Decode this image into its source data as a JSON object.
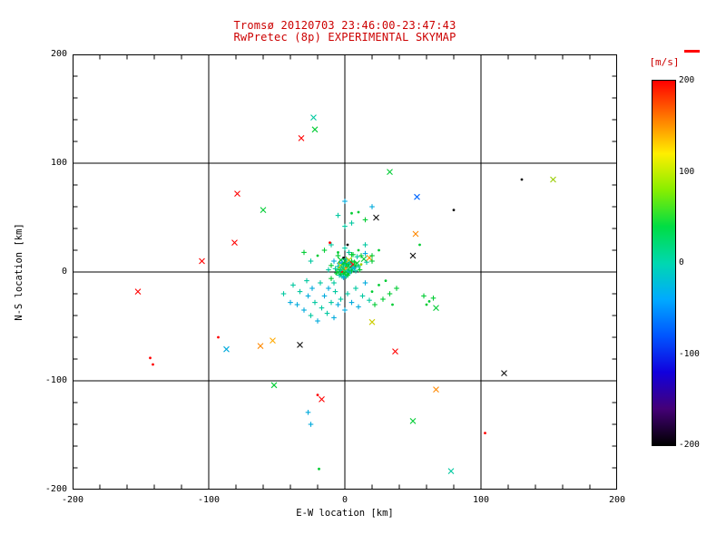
{
  "window": {
    "background": "#FFFFFF"
  },
  "chart_data": {
    "type": "scatter",
    "title": "Tromsø 20120703 23:46:00-23:47:43",
    "subtitle": "RwPretec (8p) EXPERIMENTAL SKYMAP",
    "xlabel": "E-W location [km]",
    "ylabel": "N-S location [km]",
    "xlim": [
      -200,
      200
    ],
    "ylim": [
      -200,
      200
    ],
    "xticks": [
      -200,
      -100,
      0,
      100,
      200
    ],
    "yticks": [
      -200,
      -100,
      0,
      100,
      200
    ],
    "minor_tick_step": 20,
    "grid_lines": [
      -100,
      0,
      100
    ],
    "grid_on": true,
    "title_color": "#CC0000",
    "axis_color": "#000000",
    "legend_position": "right-colorbar",
    "colorbar": {
      "label": "[m/s]",
      "label_color": "#CC0000",
      "ticks": [
        200,
        100,
        0,
        -100,
        -200
      ],
      "min": -200,
      "max": 200,
      "top_marker_color": "#FF0000",
      "gradient": [
        "#FF0000",
        "#FF7700",
        "#FFEE00",
        "#88EE00",
        "#00DD44",
        "#00D8B0",
        "#00AAFF",
        "#0055FF",
        "#1100DD",
        "#440077",
        "#000000"
      ]
    },
    "points": [
      [
        -7,
        3,
        "#00C8A0",
        "+"
      ],
      [
        -6,
        -1,
        "#00CC33",
        "+"
      ],
      [
        -5,
        5,
        "#00C8A0",
        "+"
      ],
      [
        -5,
        0,
        "#00CC33",
        "x"
      ],
      [
        -4,
        8,
        "#00AADC",
        "+"
      ],
      [
        -4,
        2,
        "#00CC33",
        "+"
      ],
      [
        -4,
        -3,
        "#00C8A0",
        "+"
      ],
      [
        -3,
        11,
        "#00CC33",
        "x"
      ],
      [
        -3,
        6,
        "#CCCC00",
        "x"
      ],
      [
        -3,
        1,
        "#00C8A0",
        "+"
      ],
      [
        -3,
        -2,
        "#00CC33",
        "+"
      ],
      [
        -2,
        9,
        "#00AADC",
        "+"
      ],
      [
        -2,
        4,
        "#00CC33",
        "+"
      ],
      [
        -2,
        0,
        "#FF0000",
        "."
      ],
      [
        -2,
        -4,
        "#00C8A0",
        "+"
      ],
      [
        -1,
        13,
        "#101010",
        "."
      ],
      [
        -1,
        7,
        "#00CC33",
        "+"
      ],
      [
        -1,
        3,
        "#00C8A0",
        "x"
      ],
      [
        -1,
        -1,
        "#00CC33",
        "+"
      ],
      [
        -1,
        -5,
        "#00AADC",
        "+"
      ],
      [
        0,
        10,
        "#00CC33",
        "x"
      ],
      [
        0,
        6,
        "#00C8A0",
        "+"
      ],
      [
        0,
        2,
        "#99CC00",
        "+"
      ],
      [
        0,
        -2,
        "#00CC33",
        "+"
      ],
      [
        1,
        12,
        "#00C8A0",
        "+"
      ],
      [
        1,
        8,
        "#00CC33",
        "+"
      ],
      [
        1,
        4,
        "#FF8800",
        "."
      ],
      [
        1,
        0,
        "#00CC33",
        "x"
      ],
      [
        1,
        -4,
        "#00C8A0",
        "+"
      ],
      [
        2,
        9,
        "#00AADC",
        "+"
      ],
      [
        2,
        5,
        "#00CC33",
        "+"
      ],
      [
        2,
        1,
        "#00C8A0",
        "+"
      ],
      [
        2,
        -3,
        "#00CC33",
        "+"
      ],
      [
        3,
        11,
        "#CCCC00",
        "x"
      ],
      [
        3,
        7,
        "#00CC33",
        "+"
      ],
      [
        3,
        2,
        "#00C8A0",
        "+"
      ],
      [
        3,
        -1,
        "#00CC33",
        "+"
      ],
      [
        4,
        8,
        "#00C8A0",
        "+"
      ],
      [
        4,
        4,
        "#00CC33",
        "x"
      ],
      [
        4,
        0,
        "#00AADC",
        "+"
      ],
      [
        5,
        10,
        "#00CC33",
        "+"
      ],
      [
        5,
        5,
        "#00C8A0",
        "+"
      ],
      [
        5,
        1,
        "#00CC33",
        "+"
      ],
      [
        6,
        7,
        "#FF0000",
        "x"
      ],
      [
        6,
        3,
        "#00C8A0",
        "+"
      ],
      [
        7,
        9,
        "#00CC33",
        "+"
      ],
      [
        7,
        4,
        "#00AADC",
        "+"
      ],
      [
        8,
        6,
        "#00CC33",
        "+"
      ],
      [
        8,
        1,
        "#00C8A0",
        "+"
      ],
      [
        9,
        8,
        "#00CC33",
        "x"
      ],
      [
        10,
        5,
        "#00C8A0",
        "+"
      ],
      [
        11,
        2,
        "#00CC33",
        "+"
      ],
      [
        12,
        7,
        "#99CC00",
        "."
      ],
      [
        14,
        12,
        "#00CC33",
        "x"
      ],
      [
        16,
        9,
        "#00C8A0",
        "+"
      ],
      [
        18,
        13,
        "#FF8800",
        "x"
      ],
      [
        20,
        10,
        "#00CC33",
        "+"
      ],
      [
        15,
        17,
        "#00AADC",
        "+"
      ],
      [
        12,
        15,
        "#00CC33",
        "+"
      ],
      [
        9,
        14,
        "#00C8A0",
        "+"
      ],
      [
        6,
        16,
        "#00CC33",
        "+"
      ],
      [
        3,
        18,
        "#00C8A0",
        "+"
      ],
      [
        -5,
        15,
        "#00CC33",
        "+"
      ],
      [
        -8,
        10,
        "#00AADC",
        "+"
      ],
      [
        -10,
        6,
        "#00CC33",
        "+"
      ],
      [
        -12,
        2,
        "#00C8A0",
        "+"
      ],
      [
        -10,
        -6,
        "#00CC33",
        "+"
      ],
      [
        -8,
        -10,
        "#00C8A0",
        "+"
      ],
      [
        -45,
        -20,
        "#00C8A0",
        "+"
      ],
      [
        -40,
        -28,
        "#00AADC",
        "+"
      ],
      [
        -38,
        -12,
        "#00C8A0",
        "+"
      ],
      [
        -35,
        -30,
        "#00AADC",
        "+"
      ],
      [
        -33,
        -18,
        "#00C8A0",
        "+"
      ],
      [
        -30,
        -35,
        "#00AADC",
        "+"
      ],
      [
        -28,
        -8,
        "#00C8A0",
        "+"
      ],
      [
        -27,
        -22,
        "#00AADC",
        "+"
      ],
      [
        -25,
        -40,
        "#00C8A0",
        "+"
      ],
      [
        -24,
        -15,
        "#00AADC",
        "+"
      ],
      [
        -22,
        -28,
        "#00C8A0",
        "+"
      ],
      [
        -20,
        -45,
        "#00AADC",
        "+"
      ],
      [
        -18,
        -10,
        "#00C8A0",
        "+"
      ],
      [
        -17,
        -33,
        "#00C8A0",
        "+"
      ],
      [
        -15,
        -22,
        "#00AADC",
        "+"
      ],
      [
        -13,
        -38,
        "#00C8A0",
        "+"
      ],
      [
        -12,
        -15,
        "#00AADC",
        "+"
      ],
      [
        -10,
        -28,
        "#00C8A0",
        "+"
      ],
      [
        -8,
        -42,
        "#00AADC",
        "+"
      ],
      [
        -7,
        -18,
        "#00C8A0",
        "+"
      ],
      [
        -5,
        -30,
        "#00AADC",
        "+"
      ],
      [
        -3,
        -25,
        "#00C8A0",
        "+"
      ],
      [
        0,
        -35,
        "#00AADC",
        "+"
      ],
      [
        2,
        -20,
        "#00C8A0",
        "+"
      ],
      [
        5,
        -28,
        "#00AADC",
        "+"
      ],
      [
        8,
        -15,
        "#00C8A0",
        "+"
      ],
      [
        10,
        -32,
        "#00AADC",
        "+"
      ],
      [
        13,
        -22,
        "#00C8A0",
        "+"
      ],
      [
        15,
        -10,
        "#00AADC",
        "+"
      ],
      [
        18,
        -26,
        "#00C8A0",
        "+"
      ],
      [
        20,
        -18,
        "#00CC33",
        "."
      ],
      [
        22,
        -30,
        "#00CC33",
        "+"
      ],
      [
        25,
        -12,
        "#00CC33",
        "."
      ],
      [
        28,
        -25,
        "#00CC33",
        "+"
      ],
      [
        30,
        -8,
        "#00CC33",
        "."
      ],
      [
        33,
        -20,
        "#00CC33",
        "+"
      ],
      [
        35,
        -30,
        "#00CC33",
        "."
      ],
      [
        38,
        -15,
        "#00CC33",
        "+"
      ],
      [
        -20,
        15,
        "#00CC33",
        "."
      ],
      [
        -15,
        20,
        "#00CC33",
        "+"
      ],
      [
        -10,
        25,
        "#00C8A0",
        "+"
      ],
      [
        -5,
        18,
        "#00CC33",
        "."
      ],
      [
        0,
        22,
        "#00C8A0",
        "+"
      ],
      [
        5,
        16,
        "#00CC33",
        "+"
      ],
      [
        10,
        20,
        "#00CC33",
        "."
      ],
      [
        15,
        25,
        "#00C8A0",
        "+"
      ],
      [
        20,
        15,
        "#00CC33",
        "+"
      ],
      [
        25,
        20,
        "#00CC33",
        "."
      ],
      [
        -25,
        10,
        "#00C8A0",
        "+"
      ],
      [
        -30,
        18,
        "#00CC33",
        "+"
      ],
      [
        5,
        45,
        "#00C8A0",
        "+"
      ],
      [
        10,
        55,
        "#00CC33",
        "."
      ],
      [
        0,
        65,
        "#00AADC",
        "+"
      ],
      [
        -5,
        52,
        "#00C8A0",
        "+"
      ],
      [
        15,
        48,
        "#00CC33",
        "+"
      ],
      [
        20,
        60,
        "#00AADC",
        "+"
      ],
      [
        5,
        54,
        "#00CC33",
        "."
      ],
      [
        0,
        42,
        "#00C8A0",
        "+"
      ],
      [
        -23,
        142,
        "#00C8A0",
        "x"
      ],
      [
        -22,
        131,
        "#00CC33",
        "x"
      ],
      [
        -32,
        123,
        "#FF0000",
        "x"
      ],
      [
        33,
        92,
        "#00CC33",
        "x"
      ],
      [
        130,
        85,
        "#101010",
        "."
      ],
      [
        153,
        85,
        "#99CC00",
        "x"
      ],
      [
        53,
        69,
        "#0066FF",
        "x"
      ],
      [
        -79,
        72,
        "#FF0000",
        "x"
      ],
      [
        -60,
        57,
        "#00CC33",
        "x"
      ],
      [
        23,
        50,
        "#101010",
        "x"
      ],
      [
        80,
        57,
        "#101010",
        "."
      ],
      [
        -81,
        27,
        "#FF0000",
        "x"
      ],
      [
        -105,
        10,
        "#FF0000",
        "x"
      ],
      [
        52,
        35,
        "#FF8800",
        "x"
      ],
      [
        55,
        25,
        "#00CC33",
        "."
      ],
      [
        50,
        15,
        "#101010",
        "x"
      ],
      [
        -11,
        27,
        "#FF0000",
        "."
      ],
      [
        2,
        25,
        "#101010",
        "."
      ],
      [
        -152,
        -18,
        "#FF0000",
        "x"
      ],
      [
        58,
        -22,
        "#00CC33",
        "+"
      ],
      [
        62,
        -27,
        "#00CC33",
        "."
      ],
      [
        65,
        -24,
        "#00CC33",
        "+"
      ],
      [
        60,
        -30,
        "#00CC33",
        "."
      ],
      [
        67,
        -33,
        "#00CC33",
        "x"
      ],
      [
        20,
        -46,
        "#CCCC00",
        "x"
      ],
      [
        -53,
        -63,
        "#FFAA00",
        "x"
      ],
      [
        -93,
        -60,
        "#FF0000",
        "."
      ],
      [
        -87,
        -71,
        "#00AADC",
        "x"
      ],
      [
        -62,
        -68,
        "#FF8800",
        "x"
      ],
      [
        -33,
        -67,
        "#101010",
        "x"
      ],
      [
        37,
        -73,
        "#FF0000",
        "x"
      ],
      [
        -143,
        -79,
        "#FF0000",
        "."
      ],
      [
        -141,
        -85,
        "#FF0000",
        "."
      ],
      [
        117,
        -93,
        "#101010",
        "x"
      ],
      [
        -52,
        -104,
        "#00CC33",
        "x"
      ],
      [
        -17,
        -117,
        "#FF0000",
        "x"
      ],
      [
        -20,
        -113,
        "#FF0000",
        "."
      ],
      [
        67,
        -108,
        "#FF8800",
        "x"
      ],
      [
        50,
        -137,
        "#00CC33",
        "x"
      ],
      [
        103,
        -148,
        "#FF0000",
        "."
      ],
      [
        -27,
        -129,
        "#00AADC",
        "+"
      ],
      [
        -25,
        -140,
        "#00AADC",
        "+"
      ],
      [
        78,
        -183,
        "#00C8A0",
        "x"
      ],
      [
        -19,
        -181,
        "#00CC33",
        "."
      ]
    ]
  }
}
